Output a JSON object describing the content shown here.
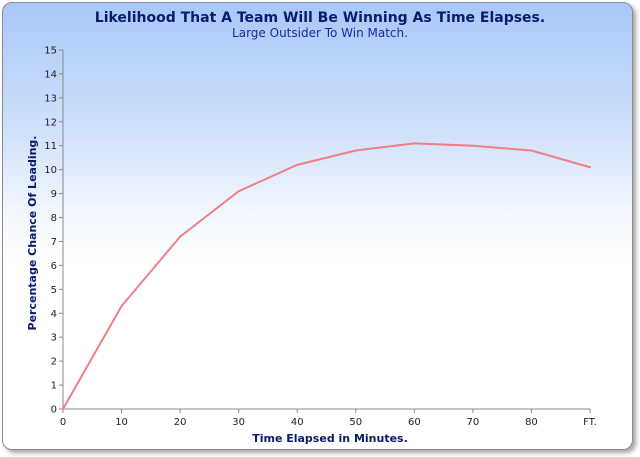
{
  "chart_data": {
    "type": "line",
    "title": "Likelihood That A Team Will Be Winning As Time Elapses.",
    "subtitle": "Large Outsider To Win Match.",
    "xlabel": "Time Elapsed in Minutes.",
    "ylabel": "Percentage Chance Of Leading.",
    "categories": [
      "0",
      "10",
      "20",
      "30",
      "40",
      "50",
      "60",
      "70",
      "80",
      "FT."
    ],
    "ylim": [
      0,
      15
    ],
    "yticks": [
      0,
      1,
      2,
      3,
      4,
      5,
      6,
      7,
      8,
      9,
      10,
      11,
      12,
      13,
      14,
      15
    ],
    "grid": false,
    "series": [
      {
        "values": [
          0,
          4.3,
          7.2,
          9.1,
          10.2,
          10.8,
          11.1,
          11.0,
          10.8,
          10.1
        ]
      }
    ],
    "line_color": "#f07f86",
    "axis_color": "#888888"
  }
}
